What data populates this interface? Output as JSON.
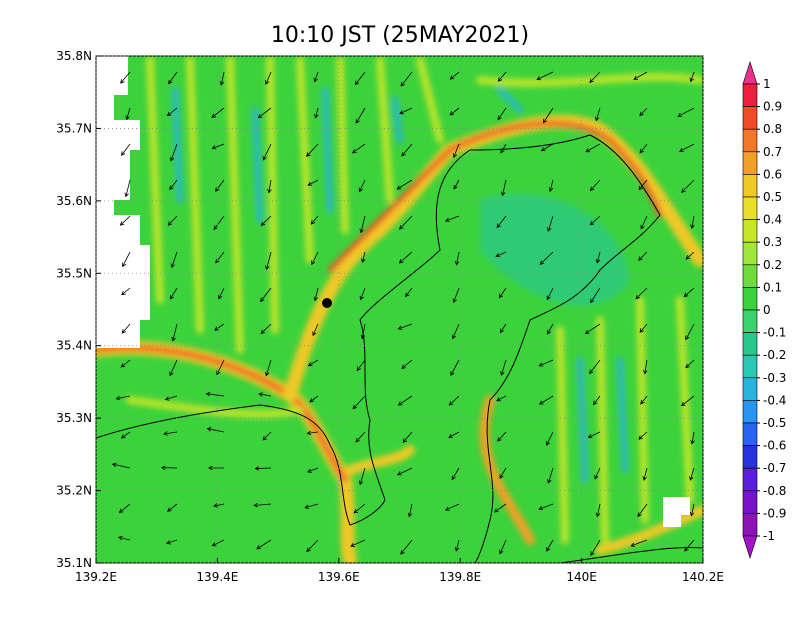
{
  "title": "10:10 JST (25MAY2021)",
  "x_axis": {
    "lim": [
      139.2,
      140.2
    ],
    "ticks": [
      {
        "value": 139.2,
        "label": "139.2E"
      },
      {
        "value": 139.4,
        "label": "139.4E"
      },
      {
        "value": 139.6,
        "label": "139.6E"
      },
      {
        "value": 139.8,
        "label": "139.8E"
      },
      {
        "value": 140,
        "label": "140E"
      },
      {
        "value": 140.2,
        "label": "140.2E"
      }
    ]
  },
  "y_axis": {
    "lim": [
      35.1,
      35.8
    ],
    "ticks": [
      {
        "value": 35.1,
        "label": "35.1N"
      },
      {
        "value": 35.2,
        "label": "35.2N"
      },
      {
        "value": 35.3,
        "label": "35.3N"
      },
      {
        "value": 35.4,
        "label": "35.4N"
      },
      {
        "value": 35.5,
        "label": "35.5N"
      },
      {
        "value": 35.6,
        "label": "35.6N"
      },
      {
        "value": 35.7,
        "label": "35.7N"
      },
      {
        "value": 35.8,
        "label": "35.8N"
      }
    ]
  },
  "colorbar": {
    "levels": [
      1,
      0.9,
      0.8,
      0.7,
      0.6,
      0.5,
      0.4,
      0.3,
      0.2,
      0.1,
      0,
      -0.1,
      -0.2,
      -0.3,
      -0.4,
      -0.5,
      -0.6,
      -0.7,
      -0.8,
      -0.9,
      -1
    ],
    "colors": [
      "#e8308c",
      "#f01e3c",
      "#f04c28",
      "#f07828",
      "#f0a028",
      "#f0c828",
      "#e8e028",
      "#c8e628",
      "#a0e63c",
      "#6edc3c",
      "#3cd23c",
      "#3cd26e",
      "#28c88c",
      "#28c8b4",
      "#28b4dc",
      "#2896f0",
      "#2864f0",
      "#2832dc",
      "#5a1edc",
      "#7814c8",
      "#8c14b4",
      "#a014c8"
    ]
  }
}
